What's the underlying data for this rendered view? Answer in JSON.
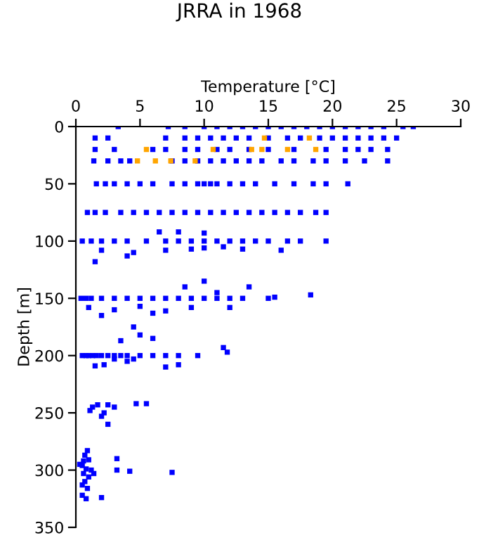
{
  "chart_data": {
    "type": "scatter",
    "title": "JRRA in 1968",
    "xlabel": "Temperature [°C]",
    "ylabel": "Depth [m]",
    "xlim": [
      0,
      30
    ],
    "xticks": [
      0,
      5,
      10,
      15,
      20,
      25,
      30
    ],
    "ylim": [
      350,
      0
    ],
    "yticks": [
      0,
      50,
      100,
      150,
      200,
      250,
      300,
      350
    ],
    "marker": "square",
    "grid": false,
    "legend": false,
    "series": [
      {
        "color": "#0000ff",
        "x": [
          3.3,
          7.2,
          8.5,
          10,
          11,
          12,
          13,
          14,
          15,
          16,
          17,
          18,
          19,
          20,
          21,
          22,
          23,
          24,
          25.5,
          26.3,
          1.5,
          2.5,
          7,
          8.5,
          9.5,
          10.5,
          11.5,
          12.5,
          13.5,
          15,
          16.5,
          17.5,
          19,
          20,
          21,
          22,
          23,
          24,
          25,
          1.5,
          3,
          6,
          7,
          8.5,
          9.5,
          11,
          12,
          13.5,
          15,
          17,
          19.5,
          21,
          22,
          23,
          24.3,
          1.4,
          2.5,
          3.5,
          4.2,
          7.5,
          8.5,
          9.5,
          10.5,
          11.5,
          12.5,
          13.5,
          14.5,
          16,
          17,
          18.5,
          19.5,
          21,
          22.5,
          24.3,
          1.6,
          2.3,
          3,
          4,
          5,
          6,
          7.5,
          8.5,
          9.5,
          10,
          10.5,
          11,
          12,
          13,
          14,
          15.5,
          17,
          18.5,
          19.5,
          21.2,
          0.9,
          1.5,
          2.3,
          3.5,
          4.5,
          5.5,
          6.5,
          7.5,
          8.5,
          9.5,
          10.5,
          11.5,
          12.5,
          13.5,
          14.5,
          15.5,
          16.5,
          17.5,
          18.7,
          19.5,
          0.5,
          1.2,
          2,
          3,
          4,
          5.5,
          7,
          8,
          9,
          10,
          11,
          12,
          13,
          14,
          15,
          16.5,
          17.5,
          19.5,
          2,
          4.5,
          7,
          9,
          10,
          11.5,
          13,
          16,
          1.5,
          6.5,
          8,
          4,
          10,
          0.4,
          0.8,
          1.2,
          2,
          3,
          4,
          5,
          6,
          7,
          8,
          9,
          10,
          11,
          12,
          13,
          15,
          18.3,
          1,
          3,
          5,
          7,
          9,
          12,
          2,
          6,
          4.5,
          3.5,
          10,
          8.5,
          13.5,
          11,
          15.5,
          0.5,
          0.8,
          1,
          1.3,
          1.6,
          2,
          2.5,
          3,
          3.5,
          4,
          5,
          6,
          7,
          8,
          9.5,
          11.5,
          11.8,
          1.5,
          2.2,
          3,
          4,
          8,
          7,
          6,
          5,
          4.5,
          1.3,
          1.1,
          1.7,
          2.5,
          3,
          2.2,
          2,
          4.7,
          5.5,
          2.5,
          0.9,
          0.7,
          0.6,
          1,
          0.5,
          0.8,
          1.2,
          0.6,
          1,
          0.7,
          0.5,
          0.9,
          0.5,
          0.8,
          2,
          3.2,
          3.2,
          4.2,
          7.5,
          0.3,
          1.4
        ],
        "values": [
          0,
          0,
          0,
          0,
          0,
          0,
          0,
          0,
          0,
          0,
          0,
          0,
          0,
          0,
          0,
          0,
          0,
          0,
          0,
          0,
          10,
          10,
          10,
          10,
          10,
          10,
          10,
          10,
          10,
          10,
          10,
          10,
          10,
          10,
          10,
          10,
          10,
          10,
          10,
          20,
          20,
          20,
          20,
          20,
          20,
          20,
          20,
          20,
          20,
          20,
          20,
          20,
          20,
          20,
          20,
          30,
          30,
          30,
          30,
          30,
          30,
          30,
          30,
          30,
          30,
          30,
          30,
          30,
          30,
          30,
          30,
          30,
          30,
          30,
          50,
          50,
          50,
          50,
          50,
          50,
          50,
          50,
          50,
          50,
          50,
          50,
          50,
          50,
          50,
          50,
          50,
          50,
          50,
          50,
          75,
          75,
          75,
          75,
          75,
          75,
          75,
          75,
          75,
          75,
          75,
          75,
          75,
          75,
          75,
          75,
          75,
          75,
          75,
          75,
          100,
          100,
          100,
          100,
          100,
          100,
          100,
          100,
          100,
          100,
          100,
          100,
          100,
          100,
          100,
          100,
          100,
          100,
          108,
          110,
          108,
          107,
          106,
          105,
          107,
          108,
          118,
          92,
          92,
          113,
          93,
          150,
          150,
          150,
          150,
          150,
          150,
          150,
          150,
          150,
          150,
          150,
          150,
          150,
          150,
          150,
          150,
          147,
          158,
          160,
          157,
          161,
          158,
          158,
          165,
          163,
          175,
          187,
          135,
          140,
          140,
          145,
          149,
          200,
          200,
          200,
          200,
          200,
          200,
          200,
          200,
          200,
          200,
          200,
          200,
          200,
          200,
          200,
          193,
          197,
          209,
          208,
          203,
          205,
          208,
          210,
          185,
          182,
          203,
          245,
          248,
          243,
          243,
          245,
          250,
          253,
          242,
          242,
          260,
          283,
          287,
          292,
          291,
          296,
          299,
          300,
          303,
          306,
          310,
          313,
          316,
          322,
          325,
          324,
          290,
          300,
          301,
          302,
          295,
          303
        ]
      },
      {
        "color": "#ffa500",
        "x": [
          14.7,
          18.2,
          5.5,
          10.7,
          13.7,
          14.5,
          16.5,
          18.7,
          4.8,
          6.2,
          7.4,
          9.3
        ],
        "values": [
          10,
          10,
          20,
          20,
          20,
          20,
          20,
          20,
          30,
          30,
          30,
          30
        ]
      }
    ]
  }
}
